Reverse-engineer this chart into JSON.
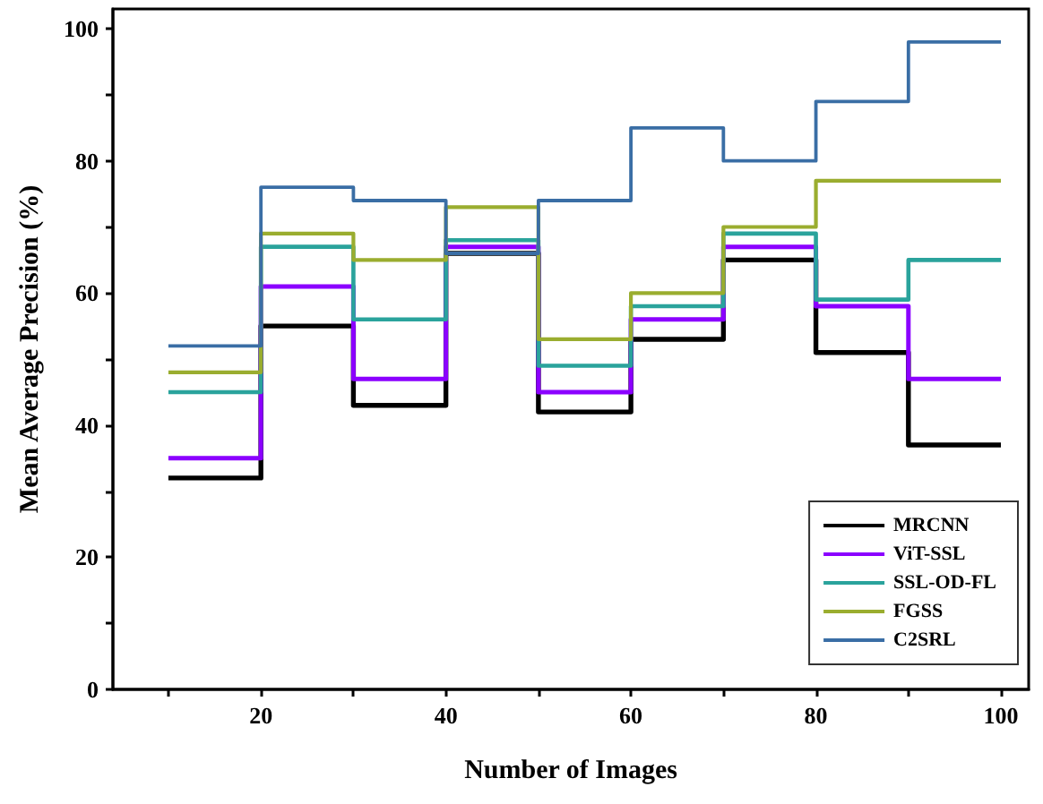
{
  "chart_data": {
    "type": "step",
    "xlabel": "Number of Images",
    "ylabel": "Mean Average Precision (%)",
    "x": [
      10,
      20,
      30,
      40,
      50,
      60,
      70,
      80,
      90,
      100
    ],
    "series": [
      {
        "name": "MRCNN",
        "color": "#000000",
        "values": [
          32,
          55,
          43,
          66,
          42,
          53,
          65,
          51,
          37,
          37
        ]
      },
      {
        "name": "ViT-SSL",
        "color": "#8b00ff",
        "values": [
          35,
          61,
          47,
          67,
          45,
          56,
          67,
          58,
          47,
          47
        ]
      },
      {
        "name": "SSL-OD-FL",
        "color": "#2aa39c",
        "values": [
          45,
          67,
          56,
          68,
          49,
          58,
          69,
          59,
          65,
          65
        ]
      },
      {
        "name": "FGSS",
        "color": "#9aad2f",
        "values": [
          48,
          69,
          65,
          73,
          53,
          60,
          70,
          77,
          77,
          77
        ]
      },
      {
        "name": "C2SRL",
        "color": "#3a6ea5",
        "values": [
          52,
          76,
          74,
          66,
          74,
          85,
          80,
          89,
          98,
          98
        ]
      }
    ],
    "xlim": [
      4,
      103
    ],
    "xticks": [
      {
        "value": 10,
        "label": null
      },
      20,
      {
        "value": 30,
        "label": null
      },
      40,
      {
        "value": 50,
        "label": null
      },
      60,
      {
        "value": 70,
        "label": null
      },
      80,
      {
        "value": 90,
        "label": null
      },
      100
    ],
    "ylim": [
      0,
      103
    ],
    "yticks": [
      0,
      {
        "value": 10,
        "label": null
      },
      20,
      {
        "value": 30,
        "label": null
      },
      40,
      {
        "value": 50,
        "label": null
      },
      60,
      {
        "value": 70,
        "label": null
      },
      80,
      {
        "value": 90,
        "label": null
      },
      100
    ],
    "legend": "bottom right",
    "grid": false,
    "marker": "none",
    "line_style": "solid"
  }
}
